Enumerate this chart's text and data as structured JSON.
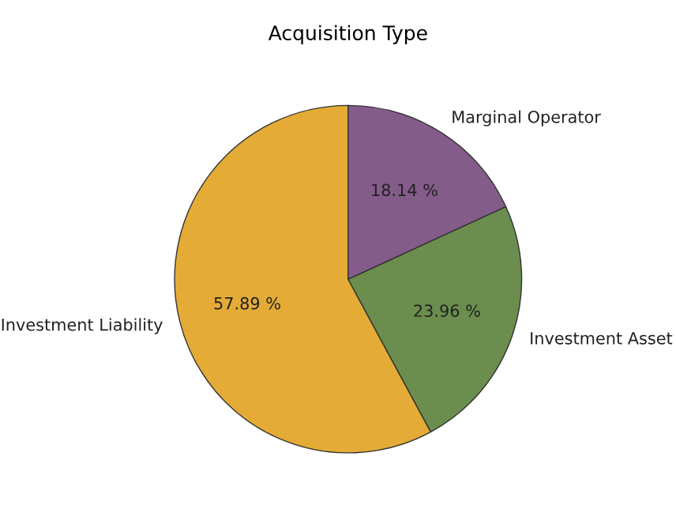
{
  "chart_data": {
    "type": "pie",
    "title": "Acquisition Type",
    "categories": [
      "Investment Liability",
      "Investment Asset",
      "Marginal Operator"
    ],
    "values": [
      57.89,
      23.96,
      18.14
    ],
    "value_labels": [
      "57.89 %",
      "23.96 %",
      "18.14 %"
    ],
    "colors": [
      "#e4ac36",
      "#6b8e4e",
      "#845c8a"
    ]
  }
}
